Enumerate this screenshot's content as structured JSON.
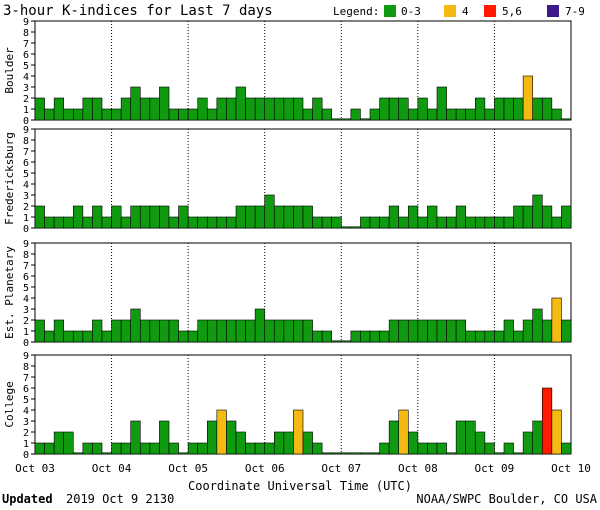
{
  "title": "3-hour K-indices for Last 7 days",
  "legend": {
    "label": "Legend:",
    "items": [
      {
        "label": "0-3",
        "color": "#0f9a0f"
      },
      {
        "label": "4",
        "color": "#f5b914"
      },
      {
        "label": "5,6",
        "color": "#ff1a00"
      },
      {
        "label": "7-9",
        "color": "#3c1a8c"
      }
    ]
  },
  "footer": {
    "updated_label": "Updated",
    "updated_value": "2019 Oct  9 2130",
    "credit": "NOAA/SWPC Boulder, CO USA"
  },
  "chart_data": {
    "type": "bar",
    "title": "3-hour K-indices for Last 7 days",
    "xlabel": "Coordinate Universal Time (UTC)",
    "x_ticks": [
      "Oct 03",
      "Oct 04",
      "Oct 05",
      "Oct 06",
      "Oct 07",
      "Oct 08",
      "Oct 09",
      "Oct 10"
    ],
    "ylim": [
      0,
      9
    ],
    "y_ticks": [
      0,
      1,
      2,
      3,
      4,
      5,
      6,
      7,
      8,
      9
    ],
    "panels": [
      {
        "name": "Boulder",
        "values": [
          2,
          1,
          2,
          1,
          1,
          2,
          2,
          1,
          1,
          2,
          3,
          2,
          2,
          3,
          1,
          1,
          1,
          2,
          1,
          2,
          2,
          3,
          2,
          2,
          2,
          2,
          2,
          2,
          1,
          2,
          1,
          0,
          0,
          1,
          0,
          1,
          2,
          2,
          2,
          1,
          2,
          1,
          3,
          1,
          1,
          1,
          2,
          1,
          2,
          2,
          2,
          4,
          2,
          2,
          1,
          0
        ]
      },
      {
        "name": "Fredericksburg",
        "values": [
          2,
          1,
          1,
          1,
          2,
          1,
          2,
          1,
          2,
          1,
          2,
          2,
          2,
          2,
          1,
          2,
          1,
          1,
          1,
          1,
          1,
          2,
          2,
          2,
          3,
          2,
          2,
          2,
          2,
          1,
          1,
          1,
          0,
          0,
          1,
          1,
          1,
          2,
          1,
          2,
          1,
          2,
          1,
          1,
          2,
          1,
          1,
          1,
          1,
          1,
          2,
          2,
          3,
          2,
          1,
          2,
          0
        ]
      },
      {
        "name": "Est. Planetary",
        "values": [
          2,
          1,
          2,
          1,
          1,
          1,
          2,
          1,
          2,
          2,
          3,
          2,
          2,
          2,
          2,
          1,
          1,
          2,
          2,
          2,
          2,
          2,
          2,
          3,
          2,
          2,
          2,
          2,
          2,
          1,
          1,
          0,
          0,
          1,
          1,
          1,
          1,
          2,
          2,
          2,
          2,
          2,
          2,
          2,
          2,
          1,
          1,
          1,
          1,
          2,
          1,
          2,
          3,
          2,
          4,
          2,
          1,
          1
        ]
      },
      {
        "name": "College",
        "values": [
          1,
          1,
          2,
          2,
          0,
          1,
          1,
          0,
          1,
          1,
          3,
          1,
          1,
          3,
          1,
          0,
          1,
          1,
          3,
          4,
          3,
          2,
          1,
          1,
          1,
          2,
          2,
          4,
          2,
          1,
          0,
          0,
          0,
          0,
          0,
          0,
          1,
          3,
          4,
          2,
          1,
          1,
          1,
          0,
          3,
          3,
          2,
          1,
          0,
          1,
          0,
          2,
          3,
          6,
          4,
          1,
          1,
          0
        ]
      }
    ]
  }
}
